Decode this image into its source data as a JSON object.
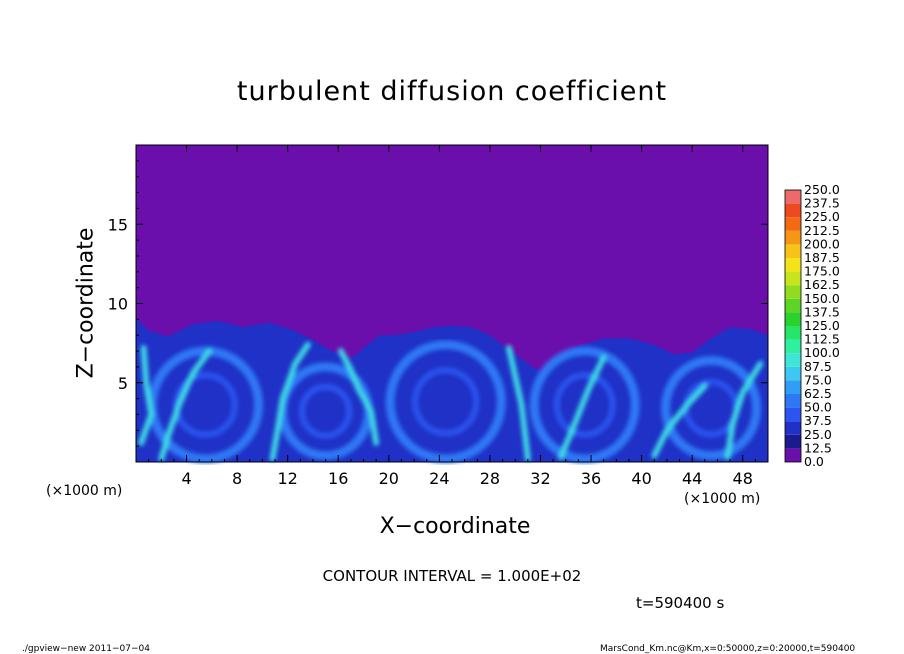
{
  "chart_data": {
    "type": "heatmap",
    "title": "turbulent diffusion coefficient",
    "xlabel": "X−coordinate",
    "ylabel": "Z−coordinate",
    "x_unit_left": "(×1000 m)",
    "x_unit_right": "(×1000 m)",
    "x_ticks": [
      "4",
      "8",
      "12",
      "16",
      "20",
      "24",
      "28",
      "32",
      "36",
      "40",
      "44",
      "48"
    ],
    "y_ticks": [
      "5",
      "10",
      "15"
    ],
    "xlim": [
      0,
      50
    ],
    "ylim": [
      0,
      20
    ],
    "colorbar": {
      "levels": [
        "0.0",
        "12.5",
        "25.0",
        "37.5",
        "50.0",
        "62.5",
        "75.0",
        "87.5",
        "100.0",
        "112.5",
        "125.0",
        "137.5",
        "150.0",
        "162.5",
        "175.0",
        "187.5",
        "200.0",
        "212.5",
        "225.0",
        "237.5",
        "250.0"
      ],
      "colors": [
        "#6a0eac",
        "#1c1b8e",
        "#1f31c6",
        "#2b55f0",
        "#2f78f5",
        "#2f9ef5",
        "#3cc8f0",
        "#3ee6d6",
        "#2ef0a0",
        "#26e66a",
        "#2ad22e",
        "#5ed426",
        "#8fdc20",
        "#c8e41c",
        "#f2e418",
        "#f5c416",
        "#f59616",
        "#f26a14",
        "#ee4a20",
        "#ee6a6a"
      ]
    },
    "contour_interval": "CONTOUR INTERVAL = 1.000E+02",
    "time_label": "t=590400 s"
  },
  "footer": {
    "left": "./gpview−new   2011−07−04",
    "right": "MarsCond_Km.nc@Km,x=0:50000,z=0:20000,t=590400"
  }
}
